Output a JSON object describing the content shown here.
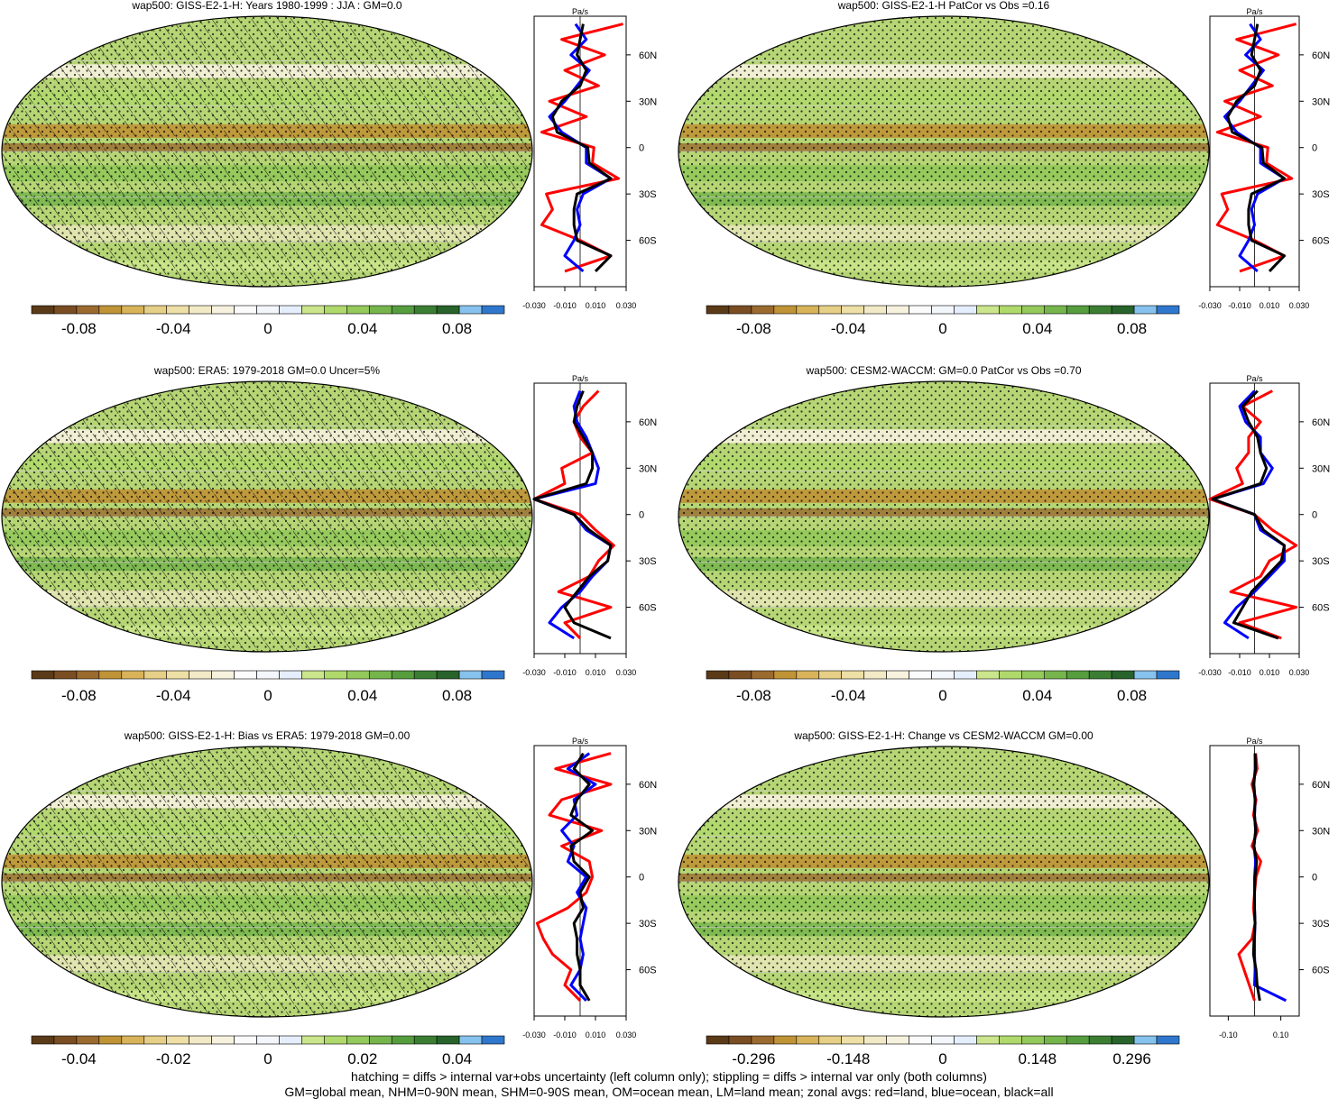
{
  "chart_data": [
    {
      "type": "heatmap",
      "title": "wap500: GISS-E2-1-H: Years 1980-1999 : JJA : GM=0.0",
      "colorbar_ticks": [
        "-0.08",
        "-0.04",
        "0",
        "0.04",
        "0.08"
      ],
      "colorbar_range": [
        -0.1,
        0.1
      ],
      "hatched": true,
      "stippled": true,
      "zonal": {
        "unit": "Pa/s",
        "x_ticks": [
          "-0.030",
          "-0.010",
          "0.010",
          "0.030"
        ],
        "xlim": [
          -0.03,
          0.03
        ],
        "lat_ticks": [
          "60N",
          "30N",
          "0",
          "30S",
          "60S"
        ],
        "series": [
          {
            "name": "land",
            "color": "#ff0000",
            "lat": [
              80,
              70,
              60,
              50,
              40,
              30,
              20,
              10,
              0,
              -10,
              -20,
              -30,
              -40,
              -50,
              -60,
              -70,
              -80
            ],
            "values": [
              0.028,
              -0.012,
              0.016,
              -0.01,
              0.012,
              -0.02,
              0.004,
              -0.025,
              0.009,
              0.008,
              0.025,
              -0.022,
              -0.018,
              -0.025,
              0.0,
              0.02,
              -0.01
            ]
          },
          {
            "name": "ocean",
            "color": "#0000ff",
            "lat": [
              80,
              70,
              60,
              50,
              40,
              30,
              20,
              10,
              0,
              -10,
              -20,
              -30,
              -40,
              -50,
              -60,
              -70,
              -80
            ],
            "values": [
              -0.003,
              0.004,
              -0.006,
              0.006,
              -0.002,
              -0.01,
              -0.02,
              -0.012,
              0.004,
              0.004,
              0.02,
              0.002,
              -0.002,
              0.0,
              -0.004,
              -0.01,
              0.002
            ]
          },
          {
            "name": "all",
            "color": "#000000",
            "lat": [
              80,
              70,
              60,
              50,
              40,
              30,
              20,
              10,
              0,
              -10,
              -20,
              -30,
              -40,
              -50,
              -60,
              -70,
              -80
            ],
            "values": [
              0.002,
              0.0,
              -0.002,
              0.004,
              0.0,
              -0.012,
              -0.018,
              -0.015,
              0.005,
              0.006,
              0.02,
              -0.002,
              -0.004,
              -0.004,
              -0.002,
              0.02,
              0.01
            ]
          }
        ]
      }
    },
    {
      "type": "heatmap",
      "title": "wap500: GISS-E2-1-H PatCor vs Obs =0.16",
      "colorbar_ticks": [
        "-0.08",
        "-0.04",
        "0",
        "0.04",
        "0.08"
      ],
      "colorbar_range": [
        -0.1,
        0.1
      ],
      "hatched": false,
      "stippled": true,
      "zonal": {
        "unit": "Pa/s",
        "x_ticks": [
          "-0.030",
          "-0.010",
          "0.010",
          "0.030"
        ],
        "xlim": [
          -0.03,
          0.03
        ],
        "lat_ticks": [
          "60N",
          "30N",
          "0",
          "30S",
          "60S"
        ],
        "series": [
          {
            "name": "land",
            "color": "#ff0000",
            "lat": [
              80,
              70,
              60,
              50,
              40,
              30,
              20,
              10,
              0,
              -10,
              -20,
              -30,
              -40,
              -50,
              -60,
              -70,
              -80
            ],
            "values": [
              0.028,
              -0.012,
              0.016,
              -0.01,
              0.012,
              -0.02,
              0.004,
              -0.025,
              0.009,
              0.008,
              0.025,
              -0.022,
              -0.018,
              -0.025,
              0.0,
              0.02,
              -0.01
            ]
          },
          {
            "name": "ocean",
            "color": "#0000ff",
            "lat": [
              80,
              70,
              60,
              50,
              40,
              30,
              20,
              10,
              0,
              -10,
              -20,
              -30,
              -40,
              -50,
              -60,
              -70,
              -80
            ],
            "values": [
              -0.003,
              0.004,
              -0.006,
              0.006,
              -0.002,
              -0.01,
              -0.02,
              -0.012,
              0.004,
              0.004,
              0.02,
              0.002,
              -0.002,
              0.0,
              -0.004,
              -0.01,
              0.002
            ]
          },
          {
            "name": "all",
            "color": "#000000",
            "lat": [
              80,
              70,
              60,
              50,
              40,
              30,
              20,
              10,
              0,
              -10,
              -20,
              -30,
              -40,
              -50,
              -60,
              -70,
              -80
            ],
            "values": [
              0.002,
              0.0,
              -0.002,
              0.004,
              0.0,
              -0.012,
              -0.018,
              -0.015,
              0.005,
              0.006,
              0.02,
              -0.002,
              -0.004,
              -0.004,
              -0.002,
              0.02,
              0.01
            ]
          }
        ]
      }
    },
    {
      "type": "heatmap",
      "title": "wap500: ERA5: 1979-2018 GM=0.0 Uncer=5%",
      "colorbar_ticks": [
        "-0.08",
        "-0.04",
        "0",
        "0.04",
        "0.08"
      ],
      "colorbar_range": [
        -0.1,
        0.1
      ],
      "hatched": true,
      "stippled": true,
      "zonal": {
        "unit": "Pa/s",
        "x_ticks": [
          "-0.030",
          "-0.010",
          "0.010",
          "0.030"
        ],
        "xlim": [
          -0.03,
          0.03
        ],
        "lat_ticks": [
          "60N",
          "30N",
          "0",
          "30S",
          "60S"
        ],
        "series": [
          {
            "name": "land",
            "color": "#ff0000",
            "lat": [
              80,
              70,
              60,
              50,
              40,
              30,
              20,
              10,
              0,
              -10,
              -20,
              -30,
              -40,
              -50,
              -60,
              -70,
              -80
            ],
            "values": [
              0.012,
              0.002,
              -0.004,
              0.0,
              0.008,
              -0.012,
              -0.01,
              -0.03,
              0.0,
              0.01,
              0.022,
              0.012,
              0.006,
              -0.014,
              0.02,
              -0.01,
              0.0
            ]
          },
          {
            "name": "ocean",
            "color": "#0000ff",
            "lat": [
              80,
              70,
              60,
              50,
              40,
              30,
              20,
              10,
              0,
              -10,
              -20,
              -30,
              -40,
              -50,
              -60,
              -70,
              -80
            ],
            "values": [
              0.0,
              -0.004,
              -0.002,
              0.004,
              0.008,
              0.012,
              0.01,
              -0.03,
              -0.004,
              0.004,
              0.02,
              0.018,
              0.008,
              0.0,
              -0.012,
              -0.02,
              -0.004
            ]
          },
          {
            "name": "all",
            "color": "#000000",
            "lat": [
              80,
              70,
              60,
              50,
              40,
              30,
              20,
              10,
              0,
              -10,
              -20,
              -30,
              -40,
              -50,
              -60,
              -70,
              -80
            ],
            "values": [
              0.002,
              -0.002,
              -0.004,
              0.002,
              0.008,
              0.008,
              0.004,
              -0.03,
              -0.004,
              0.006,
              0.02,
              0.018,
              0.006,
              -0.002,
              -0.01,
              -0.004,
              0.02
            ]
          }
        ]
      }
    },
    {
      "type": "heatmap",
      "title": "wap500: CESM2-WACCM: GM=0.0 PatCor vs Obs =0.70",
      "colorbar_ticks": [
        "-0.08",
        "-0.04",
        "0",
        "0.04",
        "0.08"
      ],
      "colorbar_range": [
        -0.1,
        0.1
      ],
      "hatched": false,
      "stippled": true,
      "zonal": {
        "unit": "Pa/s",
        "x_ticks": [
          "-0.030",
          "-0.010",
          "0.010",
          "0.030"
        ],
        "xlim": [
          -0.03,
          0.03
        ],
        "lat_ticks": [
          "60N",
          "30N",
          "0",
          "30S",
          "60S"
        ],
        "series": [
          {
            "name": "land",
            "color": "#ff0000",
            "lat": [
              80,
              70,
              60,
              50,
              40,
              30,
              20,
              10,
              0,
              -10,
              -20,
              -30,
              -40,
              -50,
              -60,
              -70,
              -80
            ],
            "values": [
              0.012,
              -0.008,
              0.004,
              -0.004,
              -0.004,
              -0.012,
              -0.008,
              -0.03,
              0.0,
              0.012,
              0.028,
              0.01,
              0.004,
              -0.016,
              0.028,
              -0.01,
              0.018
            ]
          },
          {
            "name": "ocean",
            "color": "#0000ff",
            "lat": [
              80,
              70,
              60,
              50,
              40,
              30,
              20,
              10,
              0,
              -10,
              -20,
              -30,
              -40,
              -50,
              -60,
              -70,
              -80
            ],
            "values": [
              0.0,
              -0.01,
              -0.006,
              0.004,
              0.004,
              0.012,
              0.006,
              -0.028,
              0.0,
              0.004,
              0.02,
              0.02,
              0.01,
              0.0,
              -0.012,
              -0.02,
              -0.004
            ]
          },
          {
            "name": "all",
            "color": "#000000",
            "lat": [
              80,
              70,
              60,
              50,
              40,
              30,
              20,
              10,
              0,
              -10,
              -20,
              -30,
              -40,
              -50,
              -60,
              -70,
              -80
            ],
            "values": [
              0.002,
              -0.008,
              -0.004,
              0.002,
              0.004,
              0.008,
              0.004,
              -0.028,
              0.0,
              0.006,
              0.02,
              0.018,
              0.008,
              -0.002,
              -0.008,
              -0.014,
              0.016
            ]
          }
        ]
      }
    },
    {
      "type": "heatmap",
      "title": "wap500: GISS-E2-1-H: Bias vs ERA5: 1979-2018 GM=0.00",
      "colorbar_ticks": [
        "-0.04",
        "-0.02",
        "0",
        "0.02",
        "0.04"
      ],
      "colorbar_range": [
        -0.05,
        0.05
      ],
      "hatched": true,
      "stippled": true,
      "zonal": {
        "unit": "Pa/s",
        "x_ticks": [
          "-0.030",
          "-0.010",
          "0.010",
          "0.030"
        ],
        "xlim": [
          -0.03,
          0.03
        ],
        "lat_ticks": [
          "60N",
          "30N",
          "0",
          "30S",
          "60S"
        ],
        "series": [
          {
            "name": "land",
            "color": "#ff0000",
            "lat": [
              80,
              70,
              60,
              50,
              40,
              30,
              20,
              10,
              0,
              -10,
              -20,
              -30,
              -40,
              -50,
              -60,
              -70,
              -80
            ],
            "values": [
              0.02,
              -0.016,
              0.02,
              -0.012,
              -0.02,
              0.014,
              -0.012,
              0.006,
              0.008,
              0.004,
              -0.008,
              -0.028,
              -0.024,
              -0.018,
              -0.006,
              -0.01,
              0.0
            ]
          },
          {
            "name": "ocean",
            "color": "#0000ff",
            "lat": [
              80,
              70,
              60,
              50,
              40,
              30,
              20,
              10,
              0,
              -10,
              -20,
              -30,
              -40,
              -50,
              -60,
              -70,
              -80
            ],
            "values": [
              0.006,
              -0.008,
              0.01,
              -0.004,
              -0.002,
              -0.012,
              -0.004,
              -0.008,
              0.004,
              -0.002,
              0.004,
              0.002,
              0.0,
              0.002,
              0.0,
              -0.006,
              0.004
            ]
          },
          {
            "name": "all",
            "color": "#000000",
            "lat": [
              80,
              70,
              60,
              50,
              40,
              30,
              20,
              10,
              0,
              -10,
              -20,
              -30,
              -40,
              -50,
              -60,
              -70,
              -80
            ],
            "values": [
              0.002,
              -0.004,
              0.006,
              -0.002,
              -0.006,
              0.008,
              -0.006,
              -0.004,
              0.006,
              0.0,
              0.002,
              -0.004,
              -0.002,
              -0.002,
              0.0,
              0.0,
              0.006
            ]
          }
        ]
      }
    },
    {
      "type": "heatmap",
      "title": "wap500: GISS-E2-1-H: Change vs CESM2-WACCM GM=0.00",
      "colorbar_ticks": [
        "-0.296",
        "-0.148",
        "0",
        "0.148",
        "0.296"
      ],
      "colorbar_range": [
        -0.37,
        0.37
      ],
      "hatched": false,
      "stippled": true,
      "zonal": {
        "unit": "Pa/s",
        "x_ticks": [
          "-0.10",
          "0.10"
        ],
        "xlim": [
          -0.17,
          0.17
        ],
        "lat_ticks": [
          "60N",
          "30N",
          "0",
          "30S",
          "60S"
        ],
        "series": [
          {
            "name": "land",
            "color": "#ff0000",
            "lat": [
              80,
              70,
              60,
              50,
              40,
              30,
              20,
              10,
              0,
              -10,
              -20,
              -30,
              -40,
              -50,
              -60,
              -70,
              -80
            ],
            "values": [
              0.004,
              0.01,
              -0.01,
              0.006,
              -0.004,
              0.012,
              -0.01,
              0.024,
              0.006,
              0.0,
              -0.004,
              0.002,
              -0.01,
              -0.06,
              -0.04,
              -0.02,
              0.0
            ]
          },
          {
            "name": "ocean",
            "color": "#0000ff",
            "lat": [
              80,
              70,
              60,
              50,
              40,
              30,
              20,
              10,
              0,
              -10,
              -20,
              -30,
              -40,
              -50,
              -60,
              -70,
              -80
            ],
            "values": [
              0.002,
              0.002,
              -0.002,
              0.002,
              0.0,
              0.004,
              -0.002,
              0.004,
              0.0,
              0.0,
              0.0,
              0.002,
              0.0,
              0.0,
              0.002,
              0.0,
              0.12
            ]
          },
          {
            "name": "all",
            "color": "#000000",
            "lat": [
              80,
              70,
              60,
              50,
              40,
              30,
              20,
              10,
              0,
              -10,
              -20,
              -30,
              -40,
              -50,
              -60,
              -70,
              -80
            ],
            "values": [
              0.002,
              0.004,
              -0.004,
              0.002,
              0.0,
              0.004,
              -0.002,
              0.008,
              0.002,
              0.0,
              0.0,
              0.002,
              -0.002,
              -0.004,
              0.006,
              0.01,
              0.02
            ]
          }
        ]
      }
    }
  ],
  "footer": {
    "line1": "hatching = diffs > internal var+obs uncertainty (left column only); stippling = diffs > internal var only (both columns)",
    "line2": "GM=global mean, NHM=0-90N mean, SHM=0-90S mean, OM=ocean mean, LM=land mean; zonal avgs: red=land, blue=ocean, black=all"
  },
  "colors": {
    "colorbar": [
      "#5b3a17",
      "#7a4e22",
      "#9b6a2f",
      "#c09436",
      "#d8b35a",
      "#e6cf86",
      "#eedfa6",
      "#f2e9c6",
      "#f7f2de",
      "#fbfbfb",
      "#f3f6fb",
      "#e5eefc",
      "#cae58b",
      "#b0d96c",
      "#94c95b",
      "#76b54c",
      "#569d3e",
      "#3b7e33",
      "#27632a",
      "#86c2ed",
      "#2f77cd"
    ],
    "land_line": "#ff0000",
    "ocean_line": "#0000ff",
    "all_line": "#000000"
  }
}
